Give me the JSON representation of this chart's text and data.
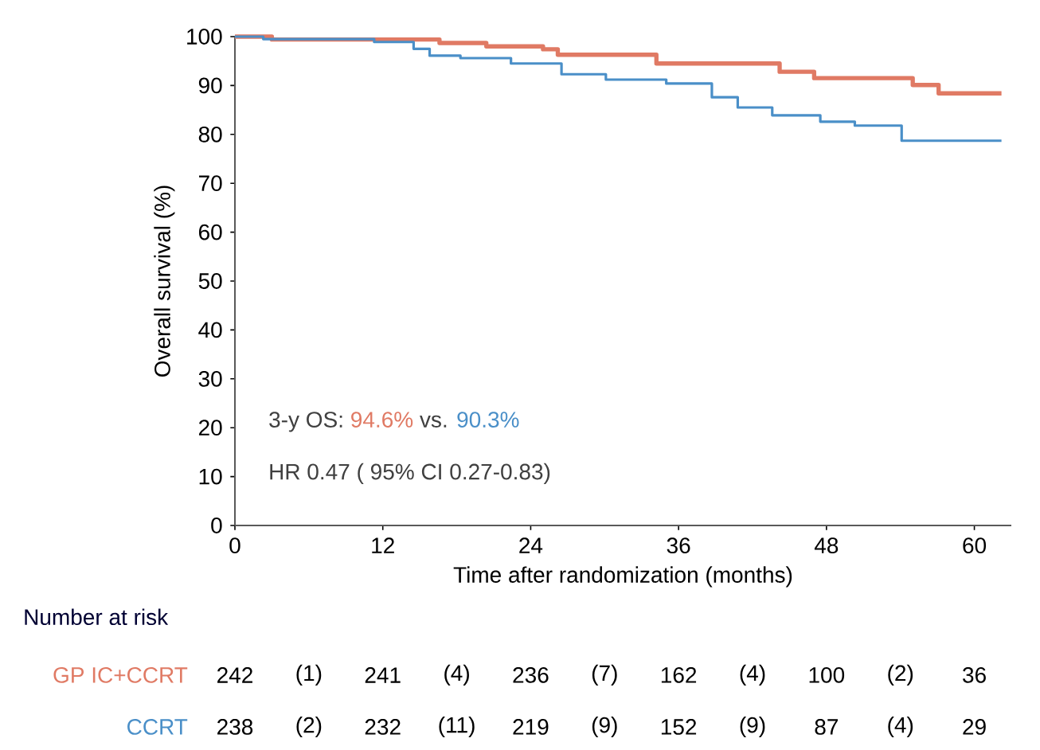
{
  "chart_data": {
    "type": "step",
    "xlabel": "Time after randomization (months)",
    "ylabel": "Overall survival (%)",
    "xlim": [
      0,
      63
    ],
    "ylim": [
      0,
      100
    ],
    "xticks": [
      0,
      12,
      24,
      36,
      48,
      60
    ],
    "yticks": [
      0,
      10,
      20,
      30,
      40,
      50,
      60,
      70,
      80,
      90,
      100
    ],
    "series": [
      {
        "name": "GP IC+CCRT",
        "color": "#e07a64",
        "x": [
          0,
          3,
          16.6,
          20.4,
          25,
          26.2,
          34.2,
          44.2,
          47,
          55,
          57.1,
          62.2
        ],
        "values": [
          100,
          99.4,
          98.7,
          98,
          97.4,
          96.3,
          94.5,
          92.8,
          91.5,
          90.1,
          88.4,
          88.4
        ]
      },
      {
        "name": "CCRT",
        "color": "#4a8fc8",
        "x": [
          0,
          2.3,
          11.3,
          14.5,
          15.8,
          18.3,
          22.4,
          26.5,
          30.1,
          35,
          38.7,
          40.8,
          43.6,
          47.5,
          50.3,
          54.1,
          62.2
        ],
        "values": [
          100,
          99.5,
          98.9,
          97.5,
          96.1,
          95.6,
          94.5,
          92.3,
          91.2,
          90.4,
          87.6,
          85.5,
          83.9,
          82.6,
          81.8,
          78.7,
          78.7
        ]
      }
    ],
    "annotations": [
      "3-y OS:",
      "94.6%",
      "vs.",
      "90.3%",
      "HR 0.47 ( 95% CI 0.27-0.83)",
      "Number at risk",
      "242",
      "(1)",
      "241",
      "(4)",
      "236",
      "(7)",
      "162",
      "(4)",
      "100",
      "(2)",
      "36",
      "238",
      "(2)",
      "232",
      "(11)",
      "219",
      "(9)",
      "152",
      "(9)",
      "87",
      "(4)",
      "29"
    ]
  }
}
